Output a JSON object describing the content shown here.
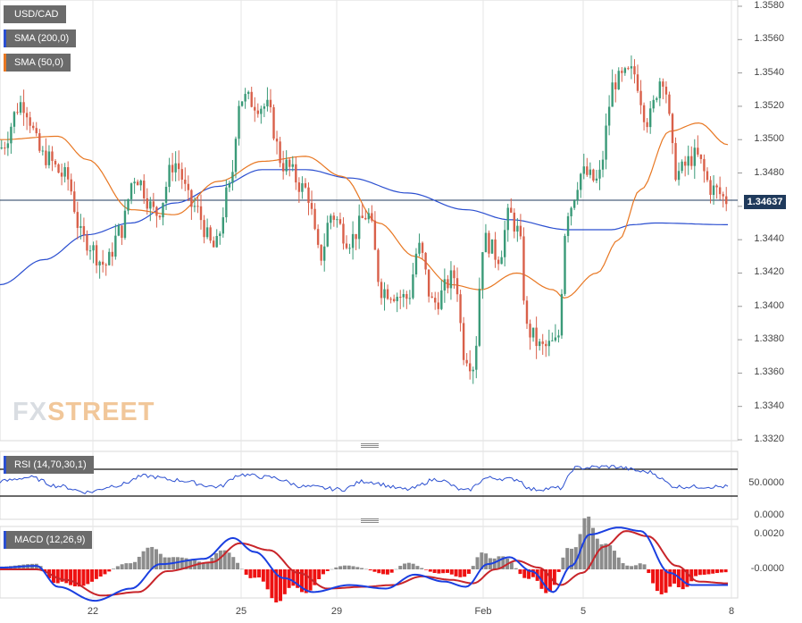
{
  "legend": {
    "symbol": "USD/CAD",
    "sma200": "SMA (200,0)",
    "sma50": "SMA (50,0)",
    "rsi": "RSI (14,70,30,1)",
    "macd": "MACD (12,26,9)"
  },
  "current_price": "1.34637",
  "watermark": {
    "part1": "FX",
    "part2": "STREET"
  },
  "colors": {
    "up_candle": "#3a9a78",
    "down_candle": "#d9604a",
    "sma200": "#2b4fd0",
    "sma50": "#e87722",
    "rsi_line": "#2b4fd0",
    "macd_line": "#1a3fe0",
    "signal_line": "#c8252a",
    "hist_pos": "#8c8c8c",
    "hist_neg": "#ee1111",
    "price_tag": "#1f3a5c"
  },
  "chart_data": [
    {
      "type": "candlestick",
      "title": "USD/CAD",
      "y_tick_labels": [
        "1.3580",
        "1.3560",
        "1.3540",
        "1.3520",
        "1.3500",
        "1.3480",
        "1.3460",
        "1.3440",
        "1.3420",
        "1.3400",
        "1.3380",
        "1.3360",
        "1.3340",
        "1.3320"
      ],
      "ylim": [
        1.332,
        1.358
      ],
      "x_tick_labels": [
        "22",
        "25",
        "29",
        "Feb",
        "5",
        "8"
      ],
      "current_price": 1.34637,
      "close_anchors": [
        {
          "t": 0.0,
          "v": 1.3495
        },
        {
          "t": 0.03,
          "v": 1.3522
        },
        {
          "t": 0.06,
          "v": 1.349
        },
        {
          "t": 0.09,
          "v": 1.3478
        },
        {
          "t": 0.115,
          "v": 1.344
        },
        {
          "t": 0.145,
          "v": 1.3425
        },
        {
          "t": 0.165,
          "v": 1.3445
        },
        {
          "t": 0.185,
          "v": 1.3478
        },
        {
          "t": 0.215,
          "v": 1.3456
        },
        {
          "t": 0.24,
          "v": 1.3486
        },
        {
          "t": 0.265,
          "v": 1.346
        },
        {
          "t": 0.295,
          "v": 1.3435
        },
        {
          "t": 0.315,
          "v": 1.347
        },
        {
          "t": 0.33,
          "v": 1.3525
        },
        {
          "t": 0.365,
          "v": 1.352
        },
        {
          "t": 0.39,
          "v": 1.3485
        },
        {
          "t": 0.42,
          "v": 1.347
        },
        {
          "t": 0.44,
          "v": 1.343
        },
        {
          "t": 0.455,
          "v": 1.3455
        },
        {
          "t": 0.48,
          "v": 1.344
        },
        {
          "t": 0.505,
          "v": 1.3455
        },
        {
          "t": 0.525,
          "v": 1.341
        },
        {
          "t": 0.56,
          "v": 1.3405
        },
        {
          "t": 0.575,
          "v": 1.3435
        },
        {
          "t": 0.595,
          "v": 1.3402
        },
        {
          "t": 0.625,
          "v": 1.3418
        },
        {
          "t": 0.638,
          "v": 1.3372
        },
        {
          "t": 0.65,
          "v": 1.3365
        },
        {
          "t": 0.665,
          "v": 1.344
        },
        {
          "t": 0.685,
          "v": 1.343
        },
        {
          "t": 0.7,
          "v": 1.3455
        },
        {
          "t": 0.712,
          "v": 1.3445
        },
        {
          "t": 0.725,
          "v": 1.3385
        },
        {
          "t": 0.745,
          "v": 1.3375
        },
        {
          "t": 0.765,
          "v": 1.3378
        },
        {
          "t": 0.78,
          "v": 1.3458
        },
        {
          "t": 0.8,
          "v": 1.348
        },
        {
          "t": 0.82,
          "v": 1.3475
        },
        {
          "t": 0.845,
          "v": 1.3535
        },
        {
          "t": 0.87,
          "v": 1.354
        },
        {
          "t": 0.89,
          "v": 1.3512
        },
        {
          "t": 0.91,
          "v": 1.3538
        },
        {
          "t": 0.93,
          "v": 1.348
        },
        {
          "t": 0.955,
          "v": 1.349
        },
        {
          "t": 0.98,
          "v": 1.347
        },
        {
          "t": 1.0,
          "v": 1.34637
        }
      ],
      "sma50_anchors": [
        {
          "t": 0.0,
          "v": 1.35
        },
        {
          "t": 0.08,
          "v": 1.3502
        },
        {
          "t": 0.12,
          "v": 1.3488
        },
        {
          "t": 0.18,
          "v": 1.3458
        },
        {
          "t": 0.24,
          "v": 1.3455
        },
        {
          "t": 0.3,
          "v": 1.3475
        },
        {
          "t": 0.36,
          "v": 1.3487
        },
        {
          "t": 0.42,
          "v": 1.349
        },
        {
          "t": 0.47,
          "v": 1.3478
        },
        {
          "t": 0.52,
          "v": 1.345
        },
        {
          "t": 0.57,
          "v": 1.343
        },
        {
          "t": 0.62,
          "v": 1.3413
        },
        {
          "t": 0.66,
          "v": 1.341
        },
        {
          "t": 0.71,
          "v": 1.342
        },
        {
          "t": 0.76,
          "v": 1.341
        },
        {
          "t": 0.775,
          "v": 1.3405
        },
        {
          "t": 0.82,
          "v": 1.342
        },
        {
          "t": 0.85,
          "v": 1.344
        },
        {
          "t": 0.88,
          "v": 1.347
        },
        {
          "t": 0.92,
          "v": 1.3505
        },
        {
          "t": 0.96,
          "v": 1.351
        },
        {
          "t": 1.0,
          "v": 1.3497
        }
      ],
      "sma200_anchors": [
        {
          "t": 0.0,
          "v": 1.3413
        },
        {
          "t": 0.06,
          "v": 1.3428
        },
        {
          "t": 0.12,
          "v": 1.3443
        },
        {
          "t": 0.18,
          "v": 1.345
        },
        {
          "t": 0.24,
          "v": 1.3462
        },
        {
          "t": 0.3,
          "v": 1.3472
        },
        {
          "t": 0.36,
          "v": 1.3482
        },
        {
          "t": 0.42,
          "v": 1.3482
        },
        {
          "t": 0.48,
          "v": 1.3477
        },
        {
          "t": 0.56,
          "v": 1.3468
        },
        {
          "t": 0.64,
          "v": 1.3458
        },
        {
          "t": 0.7,
          "v": 1.3452
        },
        {
          "t": 0.78,
          "v": 1.3446
        },
        {
          "t": 0.84,
          "v": 1.3446
        },
        {
          "t": 0.87,
          "v": 1.3449
        },
        {
          "t": 0.9,
          "v": 1.345
        },
        {
          "t": 1.0,
          "v": 1.3449
        }
      ]
    },
    {
      "type": "line",
      "title": "RSI (14,70,30,1)",
      "y_tick_labels": [
        "50.0000",
        "0.0000"
      ],
      "levels": [
        70,
        30
      ],
      "ylim": [
        0,
        100
      ],
      "anchors": [
        {
          "t": 0.0,
          "v": 52
        },
        {
          "t": 0.04,
          "v": 58
        },
        {
          "t": 0.08,
          "v": 45
        },
        {
          "t": 0.12,
          "v": 36
        },
        {
          "t": 0.16,
          "v": 46
        },
        {
          "t": 0.2,
          "v": 60
        },
        {
          "t": 0.24,
          "v": 54
        },
        {
          "t": 0.3,
          "v": 44
        },
        {
          "t": 0.33,
          "v": 62
        },
        {
          "t": 0.37,
          "v": 58
        },
        {
          "t": 0.42,
          "v": 44
        },
        {
          "t": 0.47,
          "v": 40
        },
        {
          "t": 0.5,
          "v": 52
        },
        {
          "t": 0.56,
          "v": 40
        },
        {
          "t": 0.6,
          "v": 55
        },
        {
          "t": 0.64,
          "v": 38
        },
        {
          "t": 0.67,
          "v": 57
        },
        {
          "t": 0.71,
          "v": 55
        },
        {
          "t": 0.73,
          "v": 40
        },
        {
          "t": 0.77,
          "v": 42
        },
        {
          "t": 0.79,
          "v": 72
        },
        {
          "t": 0.84,
          "v": 74
        },
        {
          "t": 0.89,
          "v": 66
        },
        {
          "t": 0.93,
          "v": 44
        },
        {
          "t": 1.0,
          "v": 44
        }
      ]
    },
    {
      "type": "line",
      "title": "MACD (12,26,9)",
      "y_tick_labels": [
        "0.0020",
        "-0.0000"
      ],
      "ylim": [
        -0.0035,
        0.0027
      ],
      "macd_anchors": [
        {
          "t": 0.0,
          "v": 0.0001
        },
        {
          "t": 0.05,
          "v": 0.0002
        },
        {
          "t": 0.08,
          "v": -0.001
        },
        {
          "t": 0.13,
          "v": -0.0018
        },
        {
          "t": 0.18,
          "v": -0.0011
        },
        {
          "t": 0.22,
          "v": 0.0003
        },
        {
          "t": 0.28,
          "v": 0.0006
        },
        {
          "t": 0.32,
          "v": 0.0018
        },
        {
          "t": 0.35,
          "v": 0.001
        },
        {
          "t": 0.39,
          "v": -0.0005
        },
        {
          "t": 0.43,
          "v": -0.0013
        },
        {
          "t": 0.48,
          "v": -0.0009
        },
        {
          "t": 0.53,
          "v": -0.0011
        },
        {
          "t": 0.57,
          "v": -0.0003
        },
        {
          "t": 0.61,
          "v": -0.0007
        },
        {
          "t": 0.64,
          "v": -0.001
        },
        {
          "t": 0.67,
          "v": 0.0003
        },
        {
          "t": 0.7,
          "v": 0.0007
        },
        {
          "t": 0.73,
          "v": -0.0001
        },
        {
          "t": 0.76,
          "v": -0.0013
        },
        {
          "t": 0.785,
          "v": 0.0002
        },
        {
          "t": 0.81,
          "v": 0.002
        },
        {
          "t": 0.85,
          "v": 0.0024
        },
        {
          "t": 0.88,
          "v": 0.0022
        },
        {
          "t": 0.92,
          "v": -0.0002
        },
        {
          "t": 0.95,
          "v": -0.0009
        },
        {
          "t": 1.0,
          "v": -0.0009
        }
      ],
      "signal_anchors": [
        {
          "t": 0.0,
          "v": 0.0
        },
        {
          "t": 0.05,
          "v": 0.0
        },
        {
          "t": 0.09,
          "v": -0.0006
        },
        {
          "t": 0.14,
          "v": -0.0015
        },
        {
          "t": 0.19,
          "v": -0.0013
        },
        {
          "t": 0.23,
          "v": -0.0001
        },
        {
          "t": 0.29,
          "v": 0.0004
        },
        {
          "t": 0.33,
          "v": 0.0015
        },
        {
          "t": 0.37,
          "v": 0.0011
        },
        {
          "t": 0.41,
          "v": -0.0002
        },
        {
          "t": 0.45,
          "v": -0.0011
        },
        {
          "t": 0.5,
          "v": -0.001
        },
        {
          "t": 0.54,
          "v": -0.0009
        },
        {
          "t": 0.58,
          "v": -0.0004
        },
        {
          "t": 0.62,
          "v": -0.0006
        },
        {
          "t": 0.65,
          "v": -0.0008
        },
        {
          "t": 0.68,
          "v": 0.0
        },
        {
          "t": 0.71,
          "v": 0.0005
        },
        {
          "t": 0.74,
          "v": 0.0001
        },
        {
          "t": 0.77,
          "v": -0.0009
        },
        {
          "t": 0.8,
          "v": -0.0002
        },
        {
          "t": 0.83,
          "v": 0.0013
        },
        {
          "t": 0.86,
          "v": 0.0022
        },
        {
          "t": 0.89,
          "v": 0.0019
        },
        {
          "t": 0.93,
          "v": 0.0002
        },
        {
          "t": 0.96,
          "v": -0.0007
        },
        {
          "t": 1.0,
          "v": -0.0008
        }
      ]
    }
  ]
}
